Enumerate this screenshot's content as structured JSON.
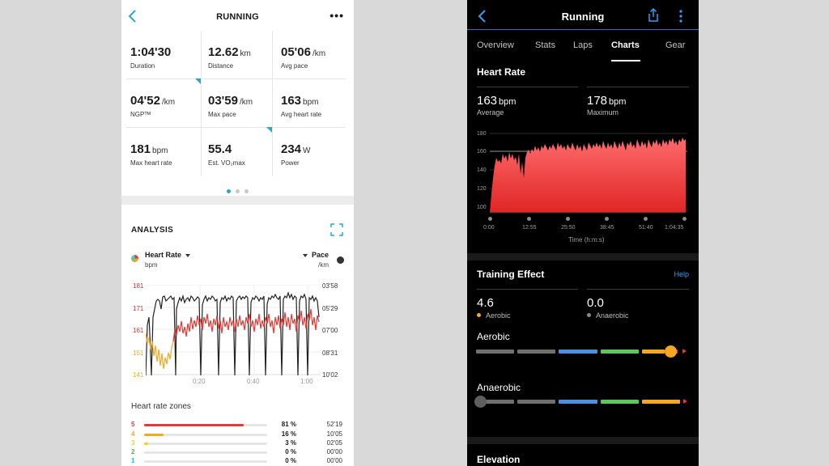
{
  "left_app": {
    "title": "RUNNING",
    "stats": [
      {
        "value": "1:04'30",
        "unit": "",
        "label": "Duration"
      },
      {
        "value": "12.62",
        "unit": "km",
        "label": "Distance"
      },
      {
        "value": "05'06",
        "unit": "/km",
        "label": "Avg pace"
      },
      {
        "value": "04'52",
        "unit": "/km",
        "label": "NGPᵀᴹ"
      },
      {
        "value": "03'59",
        "unit": "/km",
        "label": "Max pace"
      },
      {
        "value": "163",
        "unit": "bpm",
        "label": "Avg heart rate"
      },
      {
        "value": "181",
        "unit": "bpm",
        "label": "Max heart rate"
      },
      {
        "value": "55.4",
        "unit": "",
        "label": "Est. VO₂max"
      },
      {
        "value": "234",
        "unit": "W",
        "label": "Power"
      }
    ],
    "analysis": {
      "title": "ANALYSIS",
      "left_metric": {
        "name": "Heart Rate",
        "unit": "bpm"
      },
      "right_metric": {
        "name": "Pace",
        "unit": "/km"
      },
      "left_ticks": [
        "181",
        "171",
        "161",
        "151",
        "141"
      ],
      "right_ticks": [
        "03'58",
        "05'29",
        "07'00",
        "08'31",
        "10'02"
      ],
      "x_ticks": [
        "0:20",
        "0:40",
        "1:00"
      ]
    },
    "zones": {
      "title": "Heart rate zones",
      "rows": [
        {
          "zone": "5",
          "percent": "81 %",
          "time": "52'19",
          "fill": 0.81,
          "color": "#e53935"
        },
        {
          "zone": "4",
          "percent": "16 %",
          "time": "10'05",
          "fill": 0.16,
          "color": "#f5a623"
        },
        {
          "zone": "3",
          "percent": "3 %",
          "time": "02'05",
          "fill": 0.03,
          "color": "#f2d21b"
        },
        {
          "zone": "2",
          "percent": "0 %",
          "time": "00'00",
          "fill": 0,
          "color": "#4caf50"
        },
        {
          "zone": "1",
          "percent": "0 %",
          "time": "00'00",
          "fill": 0,
          "color": "#29b6f6"
        }
      ]
    }
  },
  "right_app": {
    "title": "Running",
    "tabs": [
      "Overview",
      "Stats",
      "Laps",
      "Charts",
      "Gear"
    ],
    "active_tab": "Charts",
    "heart_rate": {
      "title": "Heart Rate",
      "average": {
        "value": "163",
        "unit": "bpm",
        "label": "Average"
      },
      "maximum": {
        "value": "178",
        "unit": "bpm",
        "label": "Maximum"
      },
      "y_ticks": [
        "180",
        "160",
        "140",
        "120",
        "100"
      ],
      "x_ticks": [
        "0:00",
        "12:55",
        "25:50",
        "38:45",
        "51:40",
        "1:04:35"
      ],
      "x_label": "Time (h:m:s)"
    },
    "training_effect": {
      "title": "Training Effect",
      "help": "Help",
      "aerobic": {
        "value": "4.6",
        "label": "Aerobic",
        "color": "#f5a623"
      },
      "anaerobic": {
        "value": "0.0",
        "label": "Anaerobic",
        "color": "#8a8a8a"
      },
      "aerobic_scale_label": "Aerobic",
      "anaerobic_scale_label": "Anaerobic",
      "aerobic_level": 4.6,
      "anaerobic_level": 0.0
    },
    "elevation": {
      "title": "Elevation"
    }
  },
  "colors": {
    "accent_blue": "#2ba6cf",
    "dark_link": "#3a9bf2",
    "hr_red": "#e53935"
  }
}
